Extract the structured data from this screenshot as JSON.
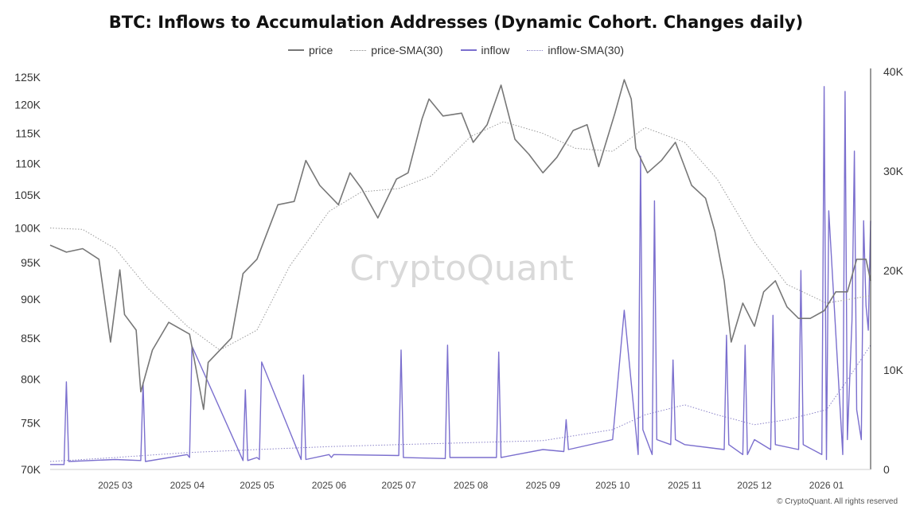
{
  "header": {
    "title": "BTC: Inflows to Accumulation Addresses (Dynamic Cohort. Changes daily)"
  },
  "watermark": "CryptoQuant",
  "credit": "© CryptoQuant. All rights reserved",
  "colors": {
    "price": "#777777",
    "price_sma": "#9a9a9a",
    "inflow": "#7b6fce",
    "inflow_sma": "#8a82c8"
  },
  "chart_data": {
    "type": "line",
    "title": "BTC: Inflows to Accumulation Addresses (Dynamic Cohort. Changes daily)",
    "legend": [
      "price",
      "price-SMA(30)",
      "inflow",
      "inflow-SMA(30)"
    ],
    "legend_position": "top-center",
    "x_ticks": [
      "2025 03",
      "2025 04",
      "2025 05",
      "2025 06",
      "2025 07",
      "2025 08",
      "2025 09",
      "2025 10",
      "2025 11",
      "2025 12",
      "2026 01"
    ],
    "x_range": [
      "2025-02-01",
      "2026-01-20"
    ],
    "y_left": {
      "ticks": [
        "70K",
        "75K",
        "80K",
        "85K",
        "90K",
        "95K",
        "100K",
        "105K",
        "110K",
        "115K",
        "120K",
        "125K"
      ],
      "scale": "log",
      "range": [
        70000,
        126000
      ]
    },
    "y_right": {
      "ticks": [
        "0",
        "10K",
        "20K",
        "30K",
        "40K"
      ],
      "range": [
        0,
        40000
      ]
    },
    "series": [
      {
        "name": "price",
        "axis": "left",
        "style": "solid",
        "dates": [
          "2025-02-01",
          "2025-02-08",
          "2025-02-15",
          "2025-02-22",
          "2025-02-27",
          "2025-03-03",
          "2025-03-05",
          "2025-03-10",
          "2025-03-12",
          "2025-03-17",
          "2025-03-24",
          "2025-04-02",
          "2025-04-08",
          "2025-04-10",
          "2025-04-20",
          "2025-04-25",
          "2025-05-01",
          "2025-05-10",
          "2025-05-17",
          "2025-05-22",
          "2025-05-28",
          "2025-06-05",
          "2025-06-10",
          "2025-06-15",
          "2025-06-22",
          "2025-06-30",
          "2025-07-05",
          "2025-07-11",
          "2025-07-14",
          "2025-07-20",
          "2025-07-28",
          "2025-08-02",
          "2025-08-08",
          "2025-08-14",
          "2025-08-20",
          "2025-08-26",
          "2025-09-01",
          "2025-09-07",
          "2025-09-14",
          "2025-09-20",
          "2025-09-25",
          "2025-10-02",
          "2025-10-06",
          "2025-10-09",
          "2025-10-11",
          "2025-10-16",
          "2025-10-22",
          "2025-10-28",
          "2025-11-04",
          "2025-11-10",
          "2025-11-14",
          "2025-11-18",
          "2025-11-21",
          "2025-11-26",
          "2025-12-01",
          "2025-12-05",
          "2025-12-10",
          "2025-12-15",
          "2025-12-20",
          "2025-12-25",
          "2025-12-31",
          "2026-01-05",
          "2026-01-10",
          "2026-01-14",
          "2026-01-18",
          "2026-01-20"
        ],
        "values": [
          97500,
          96500,
          97000,
          95500,
          84500,
          94000,
          88000,
          86000,
          78500,
          83500,
          87000,
          85500,
          76500,
          82000,
          85000,
          93500,
          95500,
          103500,
          104000,
          110500,
          106500,
          103500,
          108500,
          106000,
          101500,
          107500,
          108500,
          117500,
          121000,
          118000,
          118500,
          113500,
          116500,
          123500,
          114000,
          111500,
          108500,
          111000,
          115500,
          116500,
          109500,
          118500,
          124500,
          121000,
          112500,
          108500,
          110500,
          113500,
          106500,
          104500,
          99500,
          92500,
          84500,
          89500,
          86500,
          91000,
          92500,
          89000,
          87500,
          87500,
          88500,
          91000,
          91000,
          95500,
          95500,
          92500
        ]
      },
      {
        "name": "price-SMA(30)",
        "axis": "left",
        "style": "dotted",
        "dates": [
          "2025-02-01",
          "2025-02-15",
          "2025-03-01",
          "2025-03-15",
          "2025-04-01",
          "2025-04-15",
          "2025-05-01",
          "2025-05-15",
          "2025-06-01",
          "2025-06-15",
          "2025-07-01",
          "2025-07-15",
          "2025-08-01",
          "2025-08-15",
          "2025-09-01",
          "2025-09-15",
          "2025-10-01",
          "2025-10-15",
          "2025-11-01",
          "2025-11-15",
          "2025-12-01",
          "2025-12-15",
          "2026-01-01",
          "2026-01-20"
        ],
        "values": [
          100000,
          99800,
          97000,
          91500,
          86500,
          83500,
          86000,
          94500,
          102500,
          105500,
          106000,
          108000,
          114500,
          117000,
          115000,
          112500,
          112000,
          116000,
          113500,
          107500,
          98000,
          92000,
          89500,
          90500
        ]
      },
      {
        "name": "inflow",
        "axis": "right",
        "style": "solid",
        "dates": [
          "2025-02-01",
          "2025-02-07",
          "2025-02-08",
          "2025-02-09",
          "2025-03-01",
          "2025-03-12",
          "2025-03-13",
          "2025-03-14",
          "2025-04-01",
          "2025-04-02",
          "2025-04-03",
          "2025-04-25",
          "2025-04-26",
          "2025-04-27",
          "2025-05-01",
          "2025-05-02",
          "2025-05-03",
          "2025-05-20",
          "2025-05-21",
          "2025-05-22",
          "2025-06-01",
          "2025-06-02",
          "2025-06-03",
          "2025-07-01",
          "2025-07-02",
          "2025-07-03",
          "2025-07-21",
          "2025-07-22",
          "2025-07-23",
          "2025-08-12",
          "2025-08-13",
          "2025-08-14",
          "2025-09-01",
          "2025-09-10",
          "2025-09-11",
          "2025-09-12",
          "2025-10-01",
          "2025-10-06",
          "2025-10-12",
          "2025-10-13",
          "2025-10-14",
          "2025-10-18",
          "2025-10-19",
          "2025-10-20",
          "2025-10-26",
          "2025-10-27",
          "2025-10-28",
          "2025-11-01",
          "2025-11-18",
          "2025-11-19",
          "2025-11-20",
          "2025-11-26",
          "2025-11-27",
          "2025-11-28",
          "2025-12-01",
          "2025-12-08",
          "2025-12-09",
          "2025-12-10",
          "2025-12-20",
          "2025-12-21",
          "2025-12-22",
          "2025-12-30",
          "2025-12-31",
          "2026-01-01",
          "2026-01-02",
          "2026-01-08",
          "2026-01-09",
          "2026-01-10",
          "2026-01-12",
          "2026-01-13",
          "2026-01-14",
          "2026-01-16",
          "2026-01-17",
          "2026-01-18",
          "2026-01-19",
          "2026-01-20"
        ],
        "values": [
          500,
          500,
          8800,
          800,
          1000,
          900,
          8700,
          800,
          1500,
          1200,
          12400,
          900,
          8000,
          900,
          1200,
          1000,
          10800,
          1000,
          9500,
          1000,
          1500,
          1200,
          1500,
          1400,
          12000,
          1200,
          1100,
          12500,
          1200,
          1200,
          11800,
          1200,
          2000,
          1800,
          5000,
          2000,
          3000,
          16000,
          1500,
          31500,
          4000,
          1500,
          27000,
          3000,
          2500,
          11000,
          3000,
          2500,
          2000,
          13500,
          2500,
          1500,
          12500,
          1500,
          3000,
          2000,
          15500,
          2500,
          2000,
          20000,
          2500,
          1500,
          38500,
          1000,
          26000,
          1500,
          38000,
          3000,
          15000,
          32000,
          6000,
          3000,
          25000,
          16500,
          14000,
          25000
        ]
      },
      {
        "name": "inflow-SMA(30)",
        "axis": "right",
        "style": "dotted",
        "dates": [
          "2025-02-01",
          "2025-03-01",
          "2025-04-01",
          "2025-05-01",
          "2025-06-01",
          "2025-07-01",
          "2025-08-01",
          "2025-09-01",
          "2025-10-01",
          "2025-10-15",
          "2025-11-01",
          "2025-11-15",
          "2025-12-01",
          "2025-12-15",
          "2026-01-01",
          "2026-01-10",
          "2026-01-20"
        ],
        "values": [
          800,
          1200,
          1700,
          2000,
          2300,
          2500,
          2700,
          2900,
          4000,
          5500,
          6500,
          5500,
          4500,
          5000,
          6000,
          9000,
          12500
        ]
      }
    ]
  }
}
